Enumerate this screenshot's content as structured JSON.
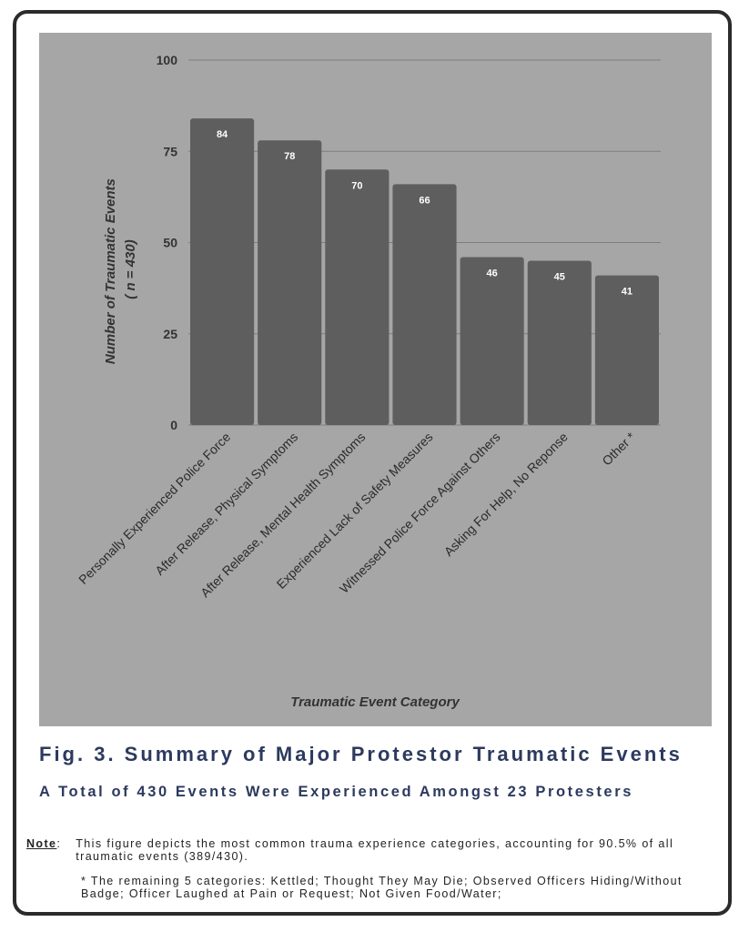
{
  "chart_data": {
    "type": "bar",
    "categories": [
      "Personally Experienced Police Force",
      "After Release, Physical Symptoms",
      "After Release, Mental Health Symptoms",
      "Experienced Lack of Safety Measures",
      "Witnessed Police Force Against Others",
      "Asking For Help, No Reponse",
      "Other *"
    ],
    "values": [
      84,
      78,
      70,
      66,
      46,
      45,
      41
    ],
    "data_labels": [
      "84",
      "78",
      "70",
      "66",
      "46",
      "45",
      "41"
    ],
    "ylabel": "Number of Traumatic Events",
    "ylabel_sub": "( n = 430)",
    "xlabel": "Traumatic Event Category",
    "ylim": [
      0,
      100
    ],
    "yticks": [
      0,
      25,
      50,
      75,
      100
    ],
    "ytick_labels": [
      "0",
      "25",
      "50",
      "75",
      "100"
    ],
    "grid": true,
    "colors": {
      "bar": "#5e5e5e",
      "plot_bg": "#a6a6a6",
      "grid": "#7d7d7d",
      "text": "#333333"
    }
  },
  "figure": {
    "title": "Fig. 3. Summary of Major Protestor Traumatic Events",
    "subtitle": "A Total of 430 Events Were Experienced Amongst 23 Protesters",
    "note_label": "Note",
    "note_text": "This figure depicts the most common trauma experience categories, accounting for 90.5% of all traumatic events (389/430).",
    "footnote": "* The remaining 5 categories: Kettled; Thought They May Die; Observed Officers Hiding/Without Badge; Officer Laughed at Pain or Request; Not Given Food/Water;"
  }
}
